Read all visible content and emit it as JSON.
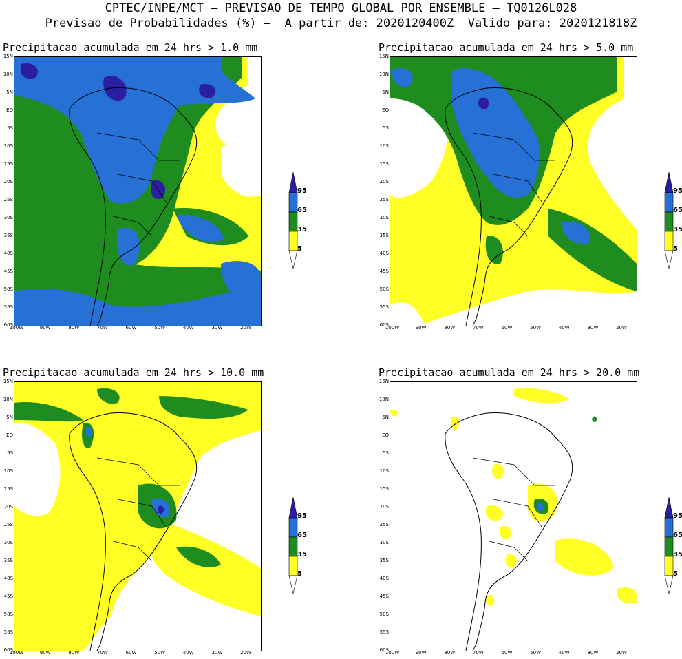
{
  "header": {
    "line1": "CPTEC/INPE/MCT — PREVISAO DE TEMPO GLOBAL POR ENSEMBLE — TQ0126L028",
    "line2": "Previsao de Probabilidades (%) —  A partir de: 2020120400Z  Valido para: 2020121818Z"
  },
  "colors": {
    "yellow": "#ffff26",
    "green": "#1e8c1e",
    "blue": "#2770d6",
    "purple": "#2b1ea3"
  },
  "legend_labels": [
    "95",
    "65",
    "35",
    "5"
  ],
  "y_ticks": [
    "15N",
    "10N",
    "5N",
    "EQ",
    "5S",
    "10S",
    "15S",
    "20S",
    "25S",
    "30S",
    "35S",
    "40S",
    "45S",
    "50S",
    "55S",
    "60S"
  ],
  "x_ticks": [
    "100W",
    "90W",
    "80W",
    "70W",
    "60W",
    "50W",
    "40W",
    "30W",
    "20W"
  ],
  "panels": [
    {
      "title": "Precipitacao acumulada em 24 hrs > 1.0 mm"
    },
    {
      "title": "Precipitacao acumulada em 24 hrs > 5.0 mm"
    },
    {
      "title": "Precipitacao acumulada em 24 hrs > 10.0 mm"
    },
    {
      "title": "Precipitacao acumulada em 24 hrs > 20.0 mm"
    }
  ]
}
